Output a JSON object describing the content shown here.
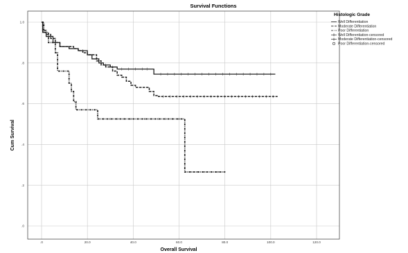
{
  "chart_data": {
    "type": "line",
    "title": "Survival Functions",
    "xlabel": "Overall Survival",
    "ylabel": "Cum Survival",
    "xlim": [
      0,
      120
    ],
    "ylim": [
      0,
      1.0
    ],
    "x_ticks": [
      0,
      20,
      40,
      60,
      80,
      100,
      120
    ],
    "x_tick_labels": [
      ".0",
      "20.0",
      "40.0",
      "60.0",
      "80.0",
      "100.0",
      "120.0"
    ],
    "y_ticks": [
      0,
      0.2,
      0.4,
      0.6,
      0.8,
      1.0
    ],
    "y_tick_labels": [
      ".0",
      ".2",
      ".4",
      ".6",
      ".8",
      "1.0"
    ],
    "grid": true,
    "legend_position": "top-right",
    "legend_title": "Histologic Grade",
    "legend_entries": [
      "Well Differentiation",
      "Moderate Differentiation",
      "Poor Differentiation",
      "Well Differentiation-censored",
      "Moderate Differentiation-censored",
      "Poor Differentiation-censored"
    ],
    "series": [
      {
        "name": "Well Differentiation",
        "style": "solid",
        "points": [
          [
            0,
            1.0
          ],
          [
            0.5,
            0.95
          ],
          [
            2,
            0.93
          ],
          [
            5,
            0.9
          ],
          [
            8,
            0.88
          ],
          [
            12,
            0.87
          ],
          [
            16,
            0.86
          ],
          [
            20,
            0.84
          ],
          [
            22,
            0.82
          ],
          [
            25,
            0.8
          ],
          [
            27,
            0.79
          ],
          [
            30,
            0.78
          ],
          [
            33,
            0.77
          ],
          [
            48,
            0.77
          ],
          [
            49,
            0.745
          ],
          [
            102,
            0.745
          ]
        ],
        "censored": [
          18,
          28,
          31,
          35,
          38,
          41,
          44,
          46,
          52,
          55,
          58,
          61,
          64,
          67,
          70,
          73,
          76,
          79,
          82,
          85,
          88,
          91,
          94,
          97,
          100
        ]
      },
      {
        "name": "Moderate Differentiation",
        "style": "dashed",
        "points": [
          [
            0,
            1.0
          ],
          [
            0.5,
            0.96
          ],
          [
            2,
            0.94
          ],
          [
            4,
            0.92
          ],
          [
            6,
            0.9
          ],
          [
            8,
            0.88
          ],
          [
            12,
            0.88
          ],
          [
            14,
            0.87
          ],
          [
            16,
            0.86
          ],
          [
            18,
            0.85
          ],
          [
            20,
            0.84
          ],
          [
            24,
            0.81
          ],
          [
            26,
            0.79
          ],
          [
            28,
            0.78
          ],
          [
            31,
            0.76
          ],
          [
            33,
            0.74
          ],
          [
            35,
            0.73
          ],
          [
            37,
            0.71
          ],
          [
            39,
            0.69
          ],
          [
            41,
            0.68
          ],
          [
            45,
            0.68
          ],
          [
            47,
            0.66
          ],
          [
            49,
            0.64
          ],
          [
            51,
            0.635
          ],
          [
            103,
            0.635
          ]
        ],
        "censored": [
          53,
          56,
          59,
          62,
          65,
          68,
          71,
          74,
          77,
          80,
          83,
          86,
          89,
          92,
          95,
          98,
          101
        ]
      },
      {
        "name": "Poor Differentiation",
        "style": "dashdot",
        "points": [
          [
            0,
            1.0
          ],
          [
            1,
            0.95
          ],
          [
            3,
            0.9
          ],
          [
            6,
            0.85
          ],
          [
            7,
            0.76
          ],
          [
            11,
            0.76
          ],
          [
            12,
            0.7
          ],
          [
            13,
            0.66
          ],
          [
            14,
            0.61
          ],
          [
            15,
            0.57
          ],
          [
            24,
            0.57
          ],
          [
            24.5,
            0.525
          ],
          [
            62,
            0.525
          ],
          [
            62.5,
            0.265
          ],
          [
            80,
            0.265
          ]
        ],
        "censored": [
          27,
          30,
          33,
          36,
          39,
          42,
          45,
          48,
          51,
          54,
          57,
          60,
          65,
          68,
          71,
          74,
          77,
          80
        ]
      }
    ]
  }
}
